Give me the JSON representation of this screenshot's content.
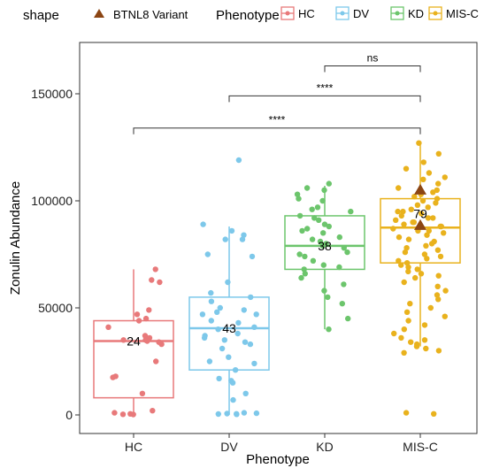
{
  "chart_data": {
    "type": "box",
    "title": "",
    "xlabel": "Phenotype",
    "ylabel": "Zonulin Abundance",
    "categories": [
      "HC",
      "DV",
      "KD",
      "MIS-C"
    ],
    "ylim": [
      -8000,
      170000
    ],
    "yticks": [
      0,
      50000,
      100000,
      150000
    ],
    "ytick_labels": [
      "0",
      "50000",
      "100000",
      "150000"
    ],
    "grid": false,
    "legend_position": "top",
    "legend": {
      "shape_title": "shape",
      "shape_label": "BTNL8 Variant",
      "color_title": "Phenotype",
      "entries": [
        "HC",
        "DV",
        "KD",
        "MIS-C"
      ]
    },
    "colors": {
      "HC": "#E8797A",
      "DV": "#7DC8EA",
      "KD": "#6CC56C",
      "MIS-C": "#E9B21D",
      "variant": "#8B4513"
    },
    "groups": [
      {
        "name": "HC",
        "n_label": "24",
        "box": {
          "min": 0,
          "q1": 8000,
          "median": 34500,
          "q3": 44000,
          "max": 68000
        },
        "points": [
          68000,
          63000,
          62000,
          49000,
          47000,
          45000,
          44000,
          41000,
          37000,
          36000,
          35000,
          35000,
          34500,
          34000,
          33000,
          25000,
          18000,
          17500,
          10000,
          2000,
          1000,
          500,
          300,
          200
        ]
      },
      {
        "name": "DV",
        "n_label": "43",
        "box": {
          "min": 0,
          "q1": 21000,
          "median": 40500,
          "q3": 55000,
          "max": 88000
        },
        "points": [
          119000,
          89000,
          86000,
          84000,
          82000,
          82000,
          75000,
          74000,
          62000,
          57000,
          55000,
          53000,
          50000,
          49000,
          48000,
          47000,
          47000,
          44000,
          43000,
          41000,
          40000,
          38000,
          37000,
          36000,
          35000,
          34000,
          33000,
          31000,
          27000,
          25000,
          24000,
          21000,
          17000,
          16000,
          15000,
          10000,
          7000,
          1000,
          800,
          600,
          500,
          400,
          300
        ]
      },
      {
        "name": "KD",
        "n_label": "38",
        "box": {
          "min": 40000,
          "q1": 68000,
          "median": 79000,
          "q3": 93000,
          "max": 107000
        },
        "points": [
          108000,
          106000,
          105000,
          103000,
          101000,
          100000,
          97000,
          96000,
          95000,
          93000,
          92000,
          91000,
          89000,
          88000,
          87000,
          86000,
          85000,
          83000,
          82000,
          81000,
          80000,
          79000,
          78000,
          76000,
          75000,
          74000,
          72000,
          70000,
          69000,
          68000,
          66000,
          64000,
          61000,
          58000,
          55000,
          52000,
          45000,
          40000
        ]
      },
      {
        "name": "MIS-C",
        "n_label": "79",
        "box": {
          "min": 32000,
          "q1": 71000,
          "median": 87500,
          "q3": 101000,
          "max": 126000
        },
        "points": [
          127000,
          122000,
          118000,
          115000,
          113000,
          111000,
          110000,
          108000,
          106000,
          105000,
          104000,
          103000,
          102000,
          101000,
          100000,
          99000,
          98000,
          97000,
          96000,
          95000,
          95000,
          94000,
          93000,
          92000,
          92000,
          91000,
          90000,
          90000,
          89000,
          88000,
          88000,
          87000,
          86000,
          86000,
          85000,
          84000,
          83000,
          82000,
          81000,
          80000,
          79000,
          78000,
          77000,
          76000,
          75000,
          74000,
          73000,
          72000,
          71000,
          70000,
          69000,
          68000,
          67000,
          66000,
          65000,
          64000,
          62000,
          60000,
          58000,
          56000,
          54000,
          52000,
          50000,
          48000,
          46000,
          44000,
          42000,
          40000,
          38000,
          36000,
          35000,
          34000,
          33000,
          32000,
          31000,
          30000,
          29000,
          1000,
          500
        ],
        "variant_points": [
          105000,
          88500
        ]
      }
    ],
    "comparisons": [
      {
        "from": "KD",
        "to": "MIS-C",
        "y": 163000,
        "label": "ns"
      },
      {
        "from": "DV",
        "to": "MIS-C",
        "y": 149000,
        "label": "****"
      },
      {
        "from": "HC",
        "to": "MIS-C",
        "y": 134000,
        "label": "****"
      }
    ]
  }
}
